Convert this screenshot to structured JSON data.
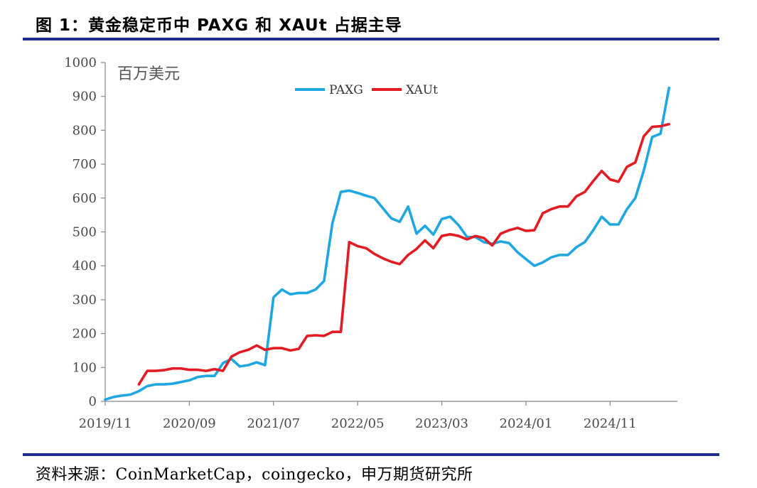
{
  "header": {
    "title": "图 1：黄金稳定币中 PAXG 和 XAUt 占据主导"
  },
  "footer": {
    "source": "资料来源：CoinMarketCap，coingecko，申万期货研究所"
  },
  "chart_data": {
    "type": "line",
    "unit_label": "百万美元",
    "ylim": [
      0,
      1000
    ],
    "y_ticks": [
      0,
      100,
      200,
      300,
      400,
      500,
      600,
      700,
      800,
      900,
      1000
    ],
    "x_tick_labels": [
      "2019/11",
      "2020/09",
      "2021/07",
      "2022/05",
      "2023/03",
      "2024/01",
      "2024/11"
    ],
    "grid": false,
    "legend_position": "top-center",
    "series": [
      {
        "name": "PAXG",
        "color": "#1ea7e1",
        "points": [
          [
            0.0,
            5
          ],
          [
            1.0,
            13
          ],
          [
            2.0,
            17
          ],
          [
            3.0,
            20
          ],
          [
            4.0,
            30
          ],
          [
            5.0,
            45
          ],
          [
            6.0,
            50
          ],
          [
            7.0,
            50
          ],
          [
            8.0,
            52
          ],
          [
            9.0,
            57
          ],
          [
            10.0,
            62
          ],
          [
            11.0,
            72
          ],
          [
            12.0,
            75
          ],
          [
            13.0,
            75
          ],
          [
            14.0,
            113
          ],
          [
            15.0,
            125
          ],
          [
            16.0,
            103
          ],
          [
            17.0,
            107
          ],
          [
            18.0,
            115
          ],
          [
            19.0,
            107
          ],
          [
            20.0,
            307
          ],
          [
            21.0,
            330
          ],
          [
            22.0,
            316
          ],
          [
            23.0,
            320
          ],
          [
            24.0,
            320
          ],
          [
            25.0,
            330
          ],
          [
            26.0,
            355
          ],
          [
            27.0,
            525
          ],
          [
            28.0,
            618
          ],
          [
            29.0,
            622
          ],
          [
            30.0,
            615
          ],
          [
            31.0,
            607
          ],
          [
            32.0,
            600
          ],
          [
            33.0,
            570
          ],
          [
            34.0,
            540
          ],
          [
            35.0,
            530
          ],
          [
            36.0,
            575
          ],
          [
            37.0,
            495
          ],
          [
            38.0,
            518
          ],
          [
            39.0,
            492
          ],
          [
            40.0,
            538
          ],
          [
            41.0,
            545
          ],
          [
            42.0,
            520
          ],
          [
            43.0,
            485
          ],
          [
            44.0,
            485
          ],
          [
            45.0,
            470
          ],
          [
            46.0,
            465
          ],
          [
            47.0,
            472
          ],
          [
            48.0,
            467
          ],
          [
            49.0,
            440
          ],
          [
            50.0,
            420
          ],
          [
            51.0,
            400
          ],
          [
            52.0,
            410
          ],
          [
            53.0,
            425
          ],
          [
            54.0,
            432
          ],
          [
            55.0,
            432
          ],
          [
            56.0,
            455
          ],
          [
            57.0,
            470
          ],
          [
            58.0,
            505
          ],
          [
            59.0,
            545
          ],
          [
            60.0,
            522
          ],
          [
            61.0,
            522
          ],
          [
            62.0,
            567
          ],
          [
            63.0,
            600
          ],
          [
            64.0,
            680
          ],
          [
            65.0,
            780
          ],
          [
            66.0,
            790
          ],
          [
            67.0,
            925
          ]
        ]
      },
      {
        "name": "XAUt",
        "color": "#e31b23",
        "points": [
          [
            4.0,
            50
          ],
          [
            5.0,
            90
          ],
          [
            6.0,
            90
          ],
          [
            7.0,
            92
          ],
          [
            8.0,
            97
          ],
          [
            9.0,
            97
          ],
          [
            10.0,
            93
          ],
          [
            11.0,
            93
          ],
          [
            12.0,
            90
          ],
          [
            13.0,
            95
          ],
          [
            14.0,
            90
          ],
          [
            15.0,
            132
          ],
          [
            16.0,
            145
          ],
          [
            17.0,
            152
          ],
          [
            18.0,
            165
          ],
          [
            19.0,
            152
          ],
          [
            20.0,
            157
          ],
          [
            21.0,
            157
          ],
          [
            22.0,
            150
          ],
          [
            23.0,
            155
          ],
          [
            24.0,
            193
          ],
          [
            25.0,
            195
          ],
          [
            26.0,
            193
          ],
          [
            27.0,
            205
          ],
          [
            28.0,
            205
          ],
          [
            29.0,
            470
          ],
          [
            30.0,
            458
          ],
          [
            31.0,
            452
          ],
          [
            32.0,
            435
          ],
          [
            33.0,
            422
          ],
          [
            34.0,
            412
          ],
          [
            35.0,
            405
          ],
          [
            36.0,
            432
          ],
          [
            37.0,
            450
          ],
          [
            38.0,
            475
          ],
          [
            39.0,
            452
          ],
          [
            40.0,
            488
          ],
          [
            41.0,
            493
          ],
          [
            42.0,
            488
          ],
          [
            43.0,
            478
          ],
          [
            44.0,
            488
          ],
          [
            45.0,
            482
          ],
          [
            46.0,
            460
          ],
          [
            47.0,
            495
          ],
          [
            48.0,
            505
          ],
          [
            49.0,
            512
          ],
          [
            50.0,
            503
          ],
          [
            51.0,
            505
          ],
          [
            52.0,
            555
          ],
          [
            53.0,
            567
          ],
          [
            54.0,
            575
          ],
          [
            55.0,
            575
          ],
          [
            56.0,
            605
          ],
          [
            57.0,
            618
          ],
          [
            58.0,
            650
          ],
          [
            59.0,
            680
          ],
          [
            60.0,
            655
          ],
          [
            61.0,
            648
          ],
          [
            62.0,
            692
          ],
          [
            63.0,
            705
          ],
          [
            64.0,
            782
          ],
          [
            65.0,
            810
          ],
          [
            66.0,
            812
          ],
          [
            67.0,
            818
          ]
        ]
      }
    ]
  }
}
